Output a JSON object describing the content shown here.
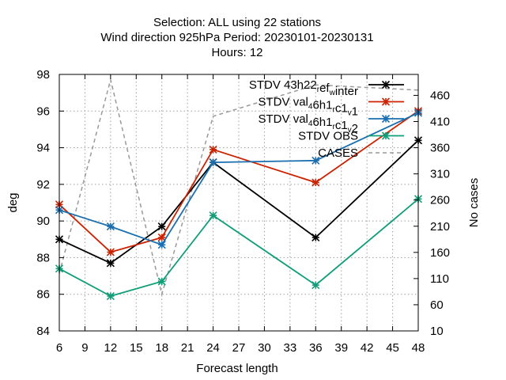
{
  "chart_data": {
    "type": "line",
    "title_lines": [
      "Selection: ALL using    22 stations",
      "Wind direction 925hPa   Period: 20230101-20230131",
      "Hours:  12"
    ],
    "xlabel": "Forecast length",
    "ylabel": "deg",
    "y2label": "No cases",
    "xlim": [
      6,
      48
    ],
    "ylim": [
      84,
      98
    ],
    "y2lim": [
      10,
      500
    ],
    "x_ticks": [
      6,
      9,
      12,
      15,
      18,
      21,
      24,
      27,
      30,
      33,
      36,
      39,
      42,
      45,
      48
    ],
    "y_ticks": [
      84,
      86,
      88,
      90,
      92,
      94,
      96,
      98
    ],
    "y2_ticks": [
      10,
      60,
      110,
      160,
      210,
      260,
      310,
      360,
      410,
      460
    ],
    "grid": true,
    "legend_position": "top-right",
    "x": [
      6,
      12,
      18,
      24,
      36,
      48
    ],
    "series": [
      {
        "name": "STDV 43h22_ref_winter",
        "legend_parts": [
          [
            "STDV 43h22",
            "n"
          ],
          [
            "r",
            "sub"
          ],
          [
            "ef",
            "n"
          ],
          [
            "w",
            "sub"
          ],
          [
            "inter",
            "n"
          ]
        ],
        "color": "#000000",
        "dash": "solid",
        "marker": "star",
        "axis": "y",
        "values": [
          89.0,
          87.7,
          89.7,
          93.2,
          89.1,
          94.4
        ]
      },
      {
        "name": "STDV val_46h1_rc1_v1",
        "legend_parts": [
          [
            "STDV val",
            "n"
          ],
          [
            "4",
            "sub"
          ],
          [
            "6h1",
            "n"
          ],
          [
            "r",
            "sub"
          ],
          [
            "c1",
            "n"
          ],
          [
            "v",
            "sub"
          ],
          [
            "1",
            "n"
          ]
        ],
        "color": "#cc2200",
        "dash": "solid",
        "marker": "star",
        "axis": "y",
        "values": [
          90.9,
          88.3,
          89.1,
          93.9,
          92.1,
          96.0
        ]
      },
      {
        "name": "STDV val_46h1_rc1_v2",
        "legend_parts": [
          [
            "STDV val",
            "n"
          ],
          [
            "4",
            "sub"
          ],
          [
            "6h1",
            "n"
          ],
          [
            "r",
            "sub"
          ],
          [
            "c1",
            "n"
          ],
          [
            "v",
            "sub"
          ],
          [
            "2",
            "n"
          ]
        ],
        "color": "#1a6fb0",
        "dash": "solid",
        "marker": "star",
        "axis": "y",
        "values": [
          90.6,
          89.7,
          88.7,
          93.2,
          93.3,
          95.9
        ]
      },
      {
        "name": "STDV OBS",
        "legend_parts": [
          [
            "STDV OBS",
            "n"
          ]
        ],
        "color": "#0f9e78",
        "dash": "solid",
        "marker": "star",
        "axis": "y",
        "values": [
          87.4,
          85.9,
          86.7,
          90.3,
          86.5,
          91.2
        ]
      },
      {
        "name": "CASES",
        "legend_parts": [
          [
            "CASES",
            "n"
          ]
        ],
        "color": "#999999",
        "dash": "dashed",
        "marker": "none",
        "axis": "y2",
        "values": [
          120,
          490,
          80,
          420,
          480,
          470
        ]
      }
    ]
  }
}
